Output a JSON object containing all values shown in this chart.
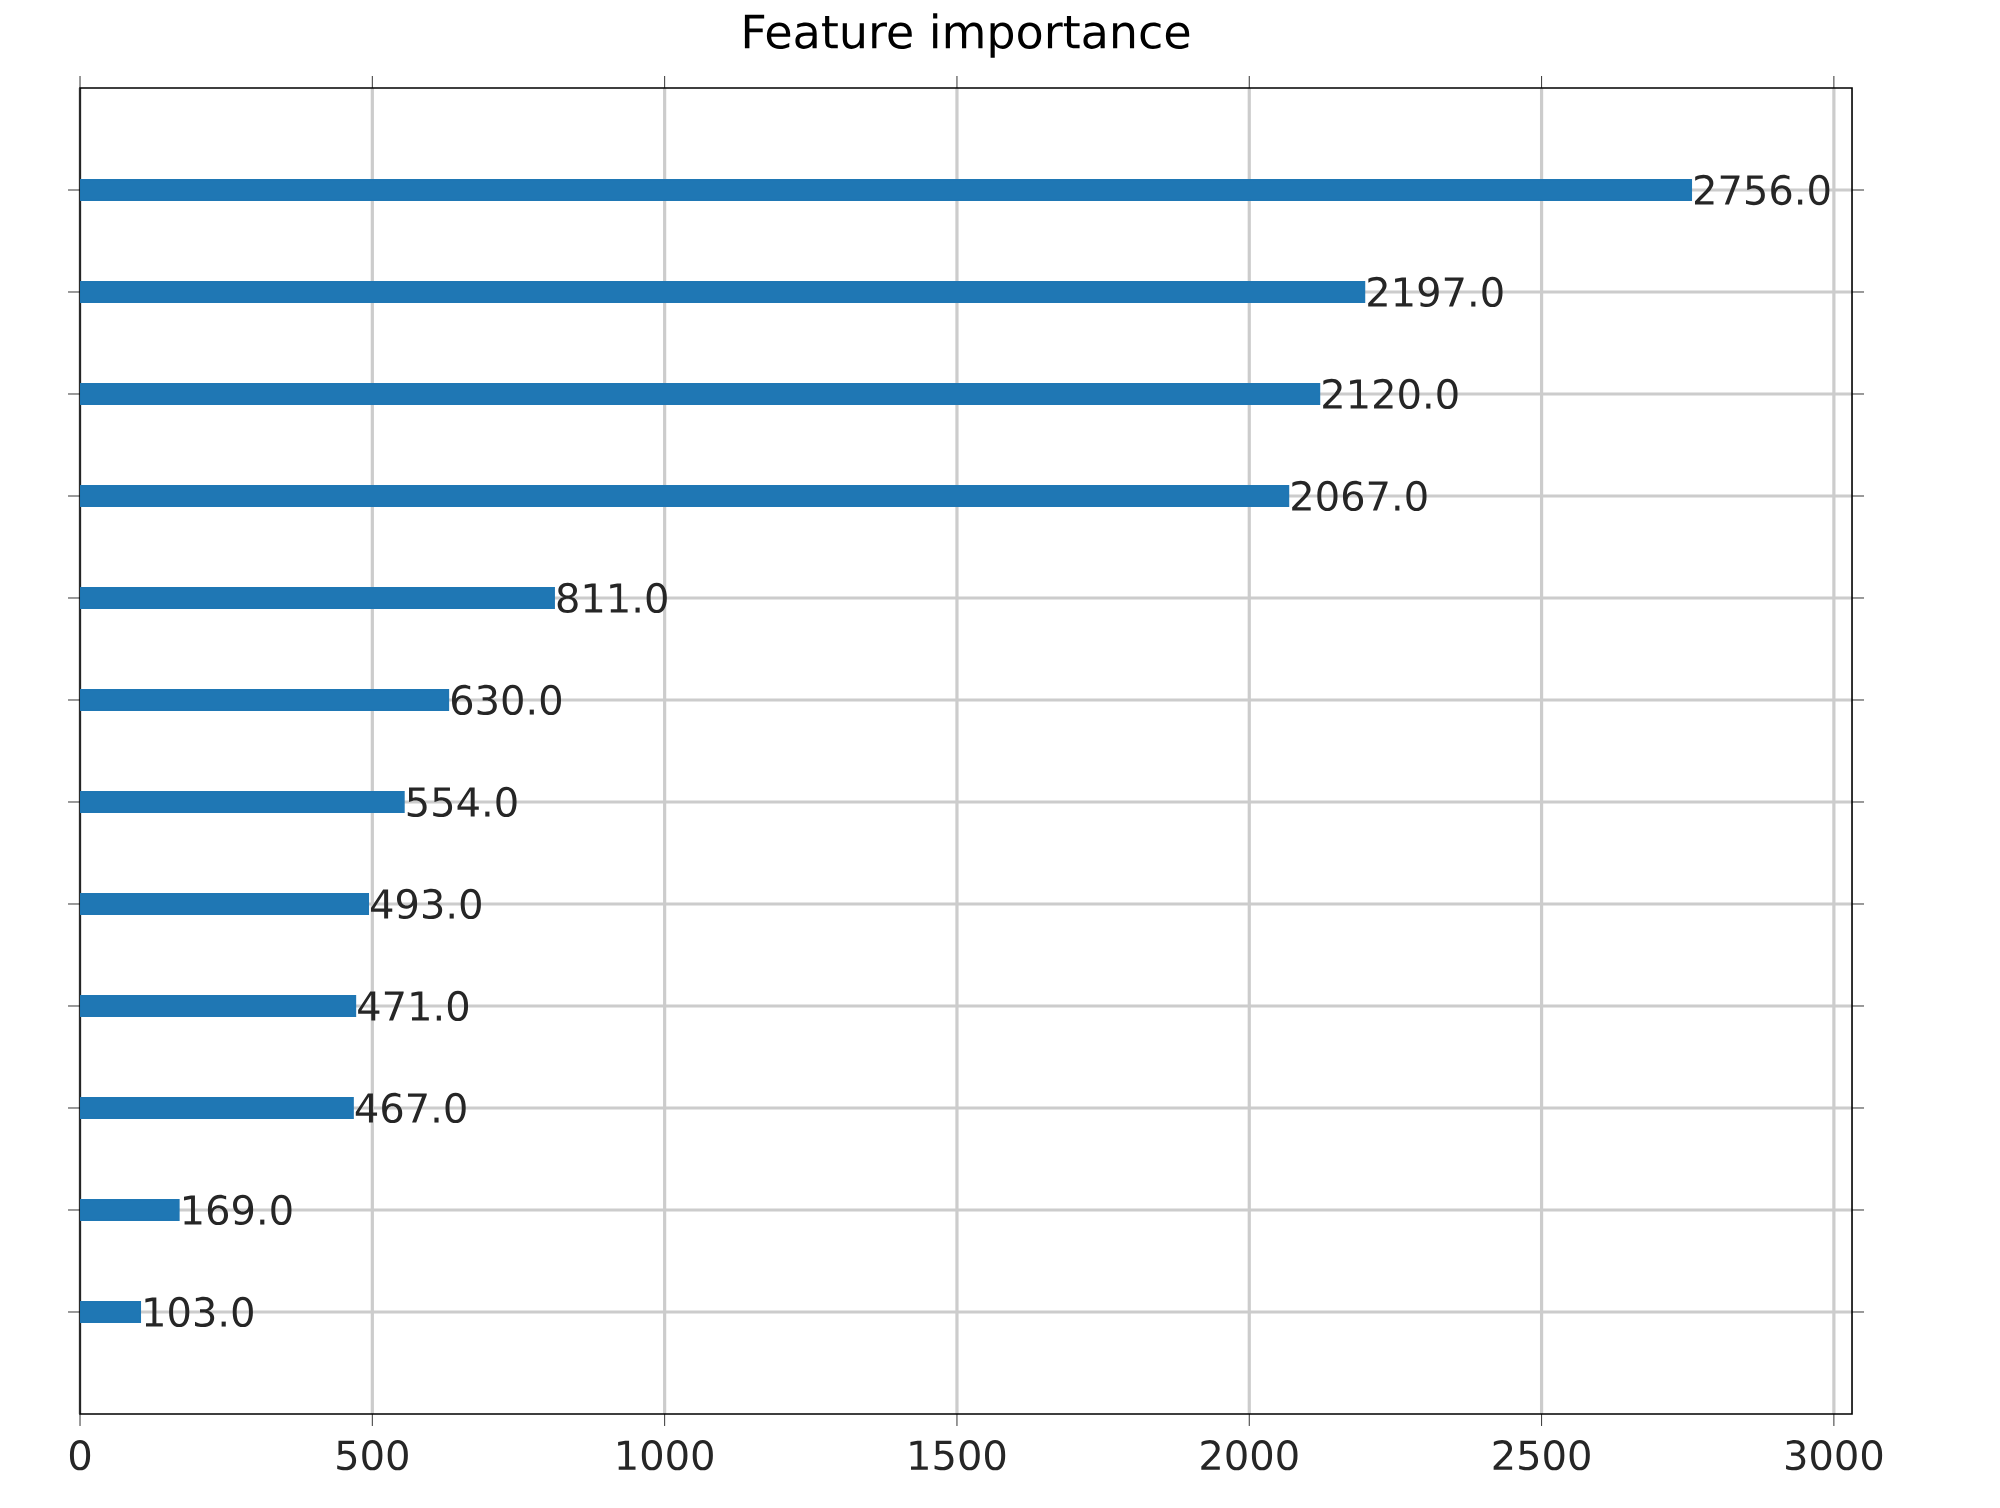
{
  "chart_data": {
    "type": "bar",
    "orientation": "horizontal",
    "title": "Feature importance",
    "categories": [
      null,
      null,
      null,
      null,
      null,
      null,
      null,
      null,
      null,
      null,
      null,
      null
    ],
    "values": [
      2756,
      2197,
      2120,
      2067,
      811,
      630,
      554,
      493,
      471,
      467,
      169,
      103
    ],
    "value_labels": [
      "2756.0",
      "2197.0",
      "2120.0",
      "2067.0",
      "811.0",
      "630.0",
      "554.0",
      "493.0",
      "471.0",
      "467.0",
      "169.0",
      "103.0"
    ],
    "color": "#1f77b4",
    "xlim": [
      0,
      3031
    ],
    "xticks": [
      0,
      500,
      1000,
      1500,
      2000,
      2500,
      3000
    ],
    "grid": true
  }
}
